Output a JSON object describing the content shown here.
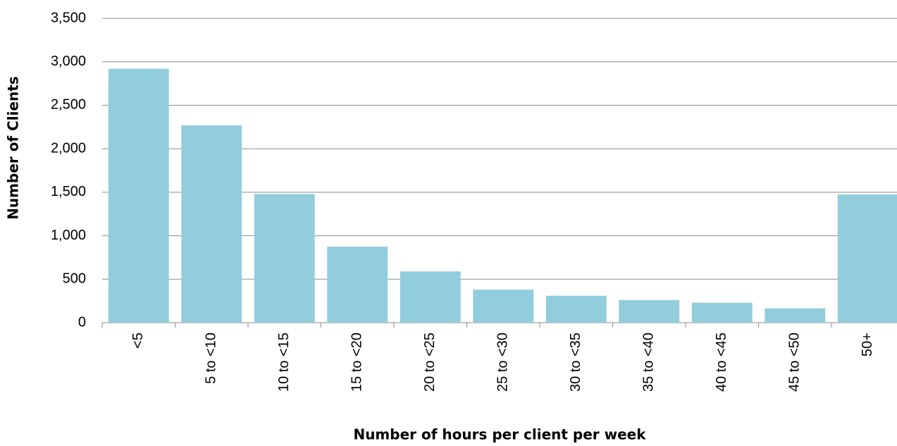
{
  "chart_data": {
    "type": "bar",
    "x_label": "Number of hours per client per week",
    "y_label": "Number of Clients",
    "categories": [
      "<5",
      "5 to <10",
      "10 to <15",
      "15 to <20",
      "20 to <25",
      "25 to <30",
      "30 to <35",
      "35 to <40",
      "40 to <45",
      "45 to <50",
      "50+"
    ],
    "values": [
      2920,
      2270,
      1480,
      875,
      590,
      380,
      310,
      260,
      230,
      165,
      1475
    ],
    "color": "#92cddc",
    "ylim": [
      0,
      3500
    ],
    "yticks": [
      0,
      500,
      {
        "value": 1000,
        "label": "1,000"
      },
      {
        "value": 1500,
        "label": "1,500"
      },
      {
        "value": 2000,
        "label": "2,000"
      },
      {
        "value": 2500,
        "label": "2,500"
      },
      {
        "value": 3000,
        "label": "3,000"
      },
      {
        "value": 3500,
        "label": "3,500"
      }
    ],
    "grid": true
  }
}
